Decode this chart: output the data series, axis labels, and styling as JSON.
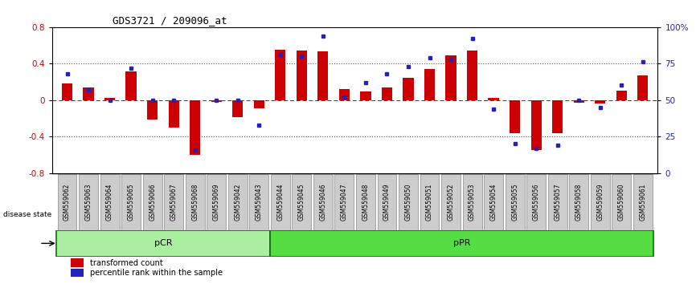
{
  "title": "GDS3721 / 209096_at",
  "samples": [
    "GSM559062",
    "GSM559063",
    "GSM559064",
    "GSM559065",
    "GSM559066",
    "GSM559067",
    "GSM559068",
    "GSM559069",
    "GSM559042",
    "GSM559043",
    "GSM559044",
    "GSM559045",
    "GSM559046",
    "GSM559047",
    "GSM559048",
    "GSM559049",
    "GSM559050",
    "GSM559051",
    "GSM559052",
    "GSM559053",
    "GSM559054",
    "GSM559055",
    "GSM559056",
    "GSM559057",
    "GSM559058",
    "GSM559059",
    "GSM559060",
    "GSM559061"
  ],
  "transformed_count": [
    0.18,
    0.14,
    0.02,
    0.31,
    -0.21,
    -0.3,
    -0.6,
    -0.02,
    -0.19,
    -0.09,
    0.55,
    0.54,
    0.53,
    0.12,
    0.09,
    0.14,
    0.24,
    0.34,
    0.49,
    0.54,
    0.02,
    -0.36,
    -0.55,
    -0.36,
    -0.03,
    -0.04,
    0.1,
    0.27
  ],
  "percentile_rank": [
    68,
    57,
    50,
    72,
    50,
    50,
    16,
    50,
    50,
    33,
    81,
    80,
    94,
    52,
    62,
    68,
    73,
    79,
    78,
    92,
    44,
    20,
    17,
    19,
    50,
    45,
    60,
    76
  ],
  "pCR_count": 10,
  "ylim_left": [
    -0.8,
    0.8
  ],
  "ylim_right": [
    0,
    100
  ],
  "yticks_left": [
    -0.8,
    -0.4,
    0.0,
    0.4,
    0.8
  ],
  "yticks_right": [
    0,
    25,
    50,
    75,
    100
  ],
  "bar_color": "#CC0000",
  "dot_color": "#2222BB",
  "pCR_facecolor": "#AAEEA0",
  "pPR_facecolor": "#55DD44",
  "disease_state_label": "disease state",
  "pCR_label": "pCR",
  "pPR_label": "pPR",
  "legend1": "transformed count",
  "legend2": "percentile rank within the sample",
  "tick_bg": "#CCCCCC",
  "gridline_color": "#555555",
  "zeroline_color": "#CC0000",
  "label_color_left": "#CC0000",
  "label_color_right": "#2222BB"
}
